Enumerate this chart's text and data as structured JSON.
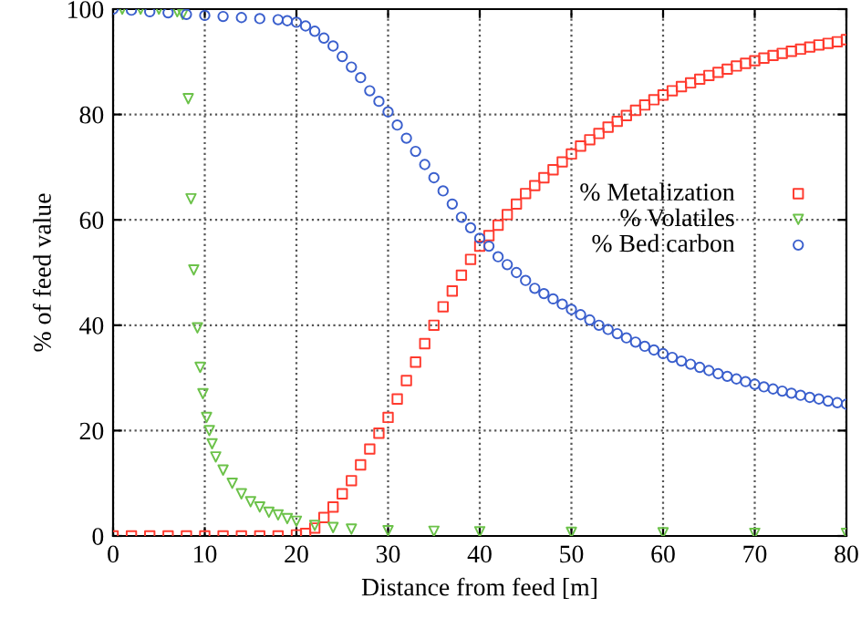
{
  "chart_data": {
    "type": "scatter",
    "xlabel": "Distance from feed [m]",
    "ylabel": "% of feed value",
    "xlim": [
      0,
      80
    ],
    "ylim": [
      0,
      100
    ],
    "xticks": [
      0,
      10,
      20,
      30,
      40,
      50,
      60,
      70,
      80
    ],
    "yticks": [
      0,
      20,
      40,
      60,
      80,
      100
    ],
    "grid": true,
    "legend": "right",
    "series": [
      {
        "name": "% Metalization",
        "color": "#ff3a2e",
        "marker": "square",
        "x": [
          0,
          2,
          4,
          6,
          8,
          10,
          12,
          14,
          16,
          18,
          20,
          21,
          22,
          23,
          24,
          25,
          26,
          27,
          28,
          29,
          30,
          31,
          32,
          33,
          34,
          35,
          36,
          37,
          38,
          39,
          40,
          41,
          42,
          43,
          44,
          45,
          46,
          47,
          48,
          49,
          50,
          51,
          52,
          53,
          54,
          55,
          56,
          57,
          58,
          59,
          60,
          61,
          62,
          63,
          64,
          65,
          66,
          67,
          68,
          69,
          70,
          71,
          72,
          73,
          74,
          75,
          76,
          77,
          78,
          79,
          80
        ],
        "values": [
          0,
          0,
          0,
          0,
          0,
          0,
          0,
          0,
          0,
          0,
          0.2,
          0.5,
          1.5,
          3.5,
          5.5,
          8,
          10.5,
          13.5,
          16.5,
          19.5,
          22.5,
          26,
          29.5,
          33,
          36.5,
          40,
          43.5,
          46.5,
          49.5,
          52.5,
          55,
          57,
          59,
          61,
          63,
          65,
          66.5,
          68,
          69.5,
          71,
          72.5,
          74,
          75.2,
          76.4,
          77.6,
          78.7,
          79.8,
          80.8,
          81.8,
          82.8,
          83.7,
          84.5,
          85.3,
          86,
          86.7,
          87.4,
          88,
          88.6,
          89.2,
          89.7,
          90.2,
          90.7,
          91.2,
          91.6,
          92,
          92.4,
          92.8,
          93.2,
          93.5,
          93.8,
          94.2
        ]
      },
      {
        "name": "% Volatiles",
        "color": "#6cc24a",
        "marker": "triangle",
        "x": [
          1,
          3,
          5,
          7,
          7.6,
          8.2,
          8.5,
          8.8,
          9.2,
          9.5,
          9.8,
          10.2,
          10.5,
          10.8,
          11.2,
          12,
          13,
          14,
          15,
          16,
          17,
          18,
          19,
          20,
          22,
          24,
          26,
          30,
          35,
          40,
          50,
          60,
          70,
          80
        ],
        "values": [
          100,
          100,
          100,
          99.5,
          99,
          83,
          64,
          50.5,
          39.5,
          32,
          27,
          22.5,
          20,
          17.5,
          15,
          12.5,
          10,
          8,
          6.5,
          5.5,
          4.5,
          4,
          3.3,
          2.8,
          2,
          1.6,
          1.3,
          1,
          0.9,
          0.8,
          0.7,
          0.6,
          0.5,
          0.5
        ]
      },
      {
        "name": "% Bed carbon",
        "color": "#3a5fcd",
        "marker": "circle",
        "x": [
          0,
          2,
          4,
          6,
          8,
          10,
          12,
          14,
          16,
          18,
          19,
          20,
          21,
          22,
          23,
          24,
          25,
          26,
          27,
          28,
          29,
          30,
          31,
          32,
          33,
          34,
          35,
          36,
          37,
          38,
          39,
          40,
          41,
          42,
          43,
          44,
          45,
          46,
          47,
          48,
          49,
          50,
          51,
          52,
          53,
          54,
          55,
          56,
          57,
          58,
          59,
          60,
          61,
          62,
          63,
          64,
          65,
          66,
          67,
          68,
          69,
          70,
          71,
          72,
          73,
          74,
          75,
          76,
          77,
          78,
          79,
          80
        ],
        "values": [
          100,
          99.8,
          99.5,
          99.3,
          99,
          98.8,
          98.6,
          98.4,
          98.2,
          98,
          97.8,
          97.5,
          96.8,
          95.8,
          94.5,
          93,
          91,
          89,
          87,
          84.5,
          82.5,
          80.5,
          78,
          75.5,
          73,
          70.5,
          68,
          65.5,
          63,
          60.5,
          58.5,
          56.5,
          55,
          53,
          51.5,
          50,
          48.5,
          47,
          46,
          45,
          44,
          43,
          42,
          41,
          40,
          39.2,
          38.4,
          37.6,
          36.8,
          36,
          35.3,
          34.6,
          33.9,
          33.2,
          32.6,
          32,
          31.4,
          30.8,
          30.3,
          29.8,
          29.3,
          28.8,
          28.3,
          27.9,
          27.5,
          27.1,
          26.7,
          26.3,
          26,
          25.6,
          25.3,
          25
        ]
      }
    ]
  }
}
